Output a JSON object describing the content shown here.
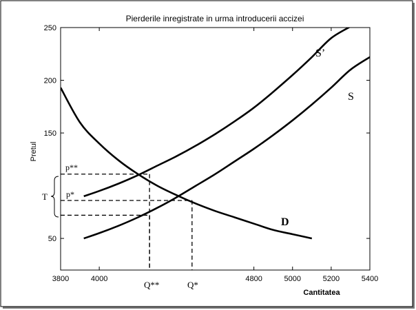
{
  "chart_data": {
    "type": "line",
    "title": "Pierderile inregistrate in urma introducerii accizei",
    "xlabel": "Cantitatea",
    "ylabel": "Pretul",
    "xlim": [
      3800,
      5400
    ],
    "ylim": [
      20,
      250
    ],
    "x_ticks": [
      "3800",
      "4000",
      "4800",
      "5000",
      "5200",
      "5400"
    ],
    "y_ticks": [
      "50",
      "150",
      "200",
      "250"
    ],
    "grid": false,
    "series": [
      {
        "name": "D",
        "x": [
          3800,
          3900,
          4000,
          4100,
          4200,
          4300,
          4400,
          4500,
          4600,
          4700,
          4800,
          4900,
          5000,
          5100
        ],
        "values": [
          193,
          160,
          140,
          124,
          111,
          100,
          91,
          83,
          76,
          70,
          64,
          58,
          54,
          50
        ]
      },
      {
        "name": "S",
        "x": [
          3920,
          4000,
          4100,
          4200,
          4300,
          4400,
          4500,
          4600,
          4700,
          4800,
          4900,
          5000,
          5100,
          5200,
          5300,
          5400
        ],
        "values": [
          50,
          55,
          62,
          70,
          79,
          89,
          100,
          111,
          123,
          135,
          148,
          162,
          177,
          193,
          210,
          222
        ]
      },
      {
        "name": "S’",
        "x": [
          3920,
          4000,
          4100,
          4200,
          4300,
          4400,
          4500,
          4600,
          4700,
          4800,
          4900,
          5000,
          5100,
          5200,
          5300
        ],
        "values": [
          90,
          95,
          102,
          110,
          119,
          128,
          138,
          149,
          161,
          174,
          189,
          205,
          222,
          240,
          251
        ]
      }
    ],
    "reference_points": [
      {
        "name": "Q**, p**",
        "x": 4260,
        "y": 111
      },
      {
        "name": "Q*, p*",
        "x": 4480,
        "y": 86
      },
      {
        "name": "Q**, lower",
        "x": 4260,
        "y": 72
      }
    ],
    "annotations": {
      "q_double_star": "Q**",
      "q_star": "Q*",
      "p_double_star": "p**",
      "p_star": "p*",
      "tax_label": "T",
      "curve_d": "D",
      "curve_s": "S",
      "curve_s_prime": "S’"
    }
  }
}
